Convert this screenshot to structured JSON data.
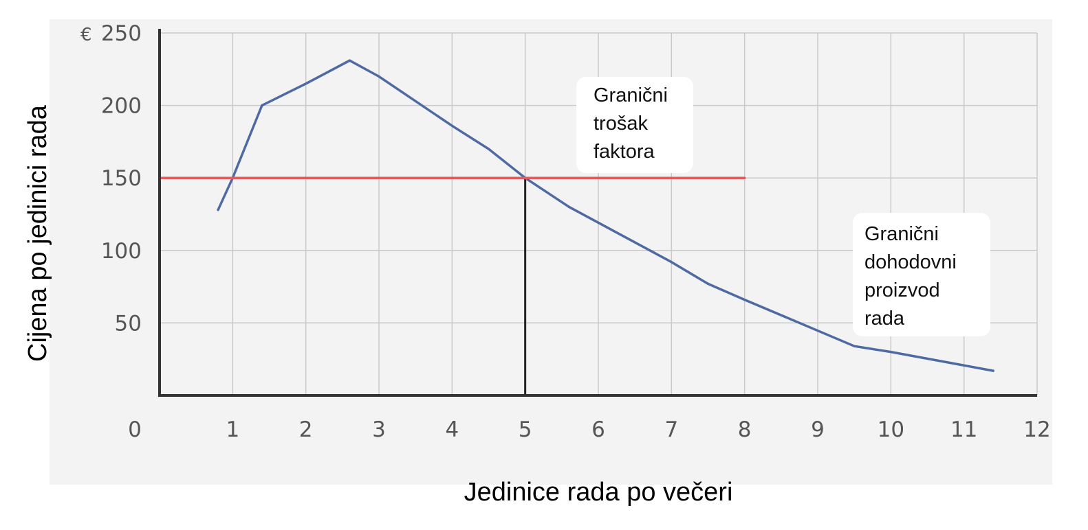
{
  "chart_data": {
    "type": "line",
    "currency_symbol": "€",
    "xlabel": "Jedinice rada po večeri",
    "ylabel": "Cijena po jedinici rada",
    "xlim": [
      0,
      12
    ],
    "ylim": [
      0,
      250
    ],
    "x_ticks": [
      0,
      1,
      2,
      3,
      4,
      5,
      6,
      7,
      8,
      9,
      10,
      11,
      12
    ],
    "y_ticks": [
      50,
      100,
      150,
      200,
      250
    ],
    "grid": true,
    "series": [
      {
        "name": "Granični dohodovni proizvod rada",
        "color": "#4f6aa3",
        "x": [
          0.8,
          1.0,
          1.4,
          2.0,
          2.6,
          3.0,
          4.0,
          4.5,
          5.0,
          5.6,
          6.3,
          7.0,
          7.5,
          8.0,
          9.5,
          10.0,
          11.4
        ],
        "y": [
          128,
          150,
          200,
          215,
          231,
          220,
          186,
          170,
          150,
          130,
          111,
          92,
          77,
          66,
          34,
          30,
          17
        ]
      },
      {
        "name": "Granični trošak faktora",
        "color": "#e35a5a",
        "x": [
          0,
          8
        ],
        "y": [
          150,
          150
        ]
      }
    ],
    "vertical_line": {
      "x": 5,
      "y0": 0,
      "y1": 150,
      "color": "#222222"
    },
    "annotations": [
      {
        "lines": [
          "Granični",
          "trošak",
          "faktora"
        ],
        "series": "Granični trošak faktora"
      },
      {
        "lines": [
          "Granični",
          "dohodovni",
          "proizvod",
          "rada"
        ],
        "series": "Granični dohodovni proizvod rada"
      }
    ]
  }
}
